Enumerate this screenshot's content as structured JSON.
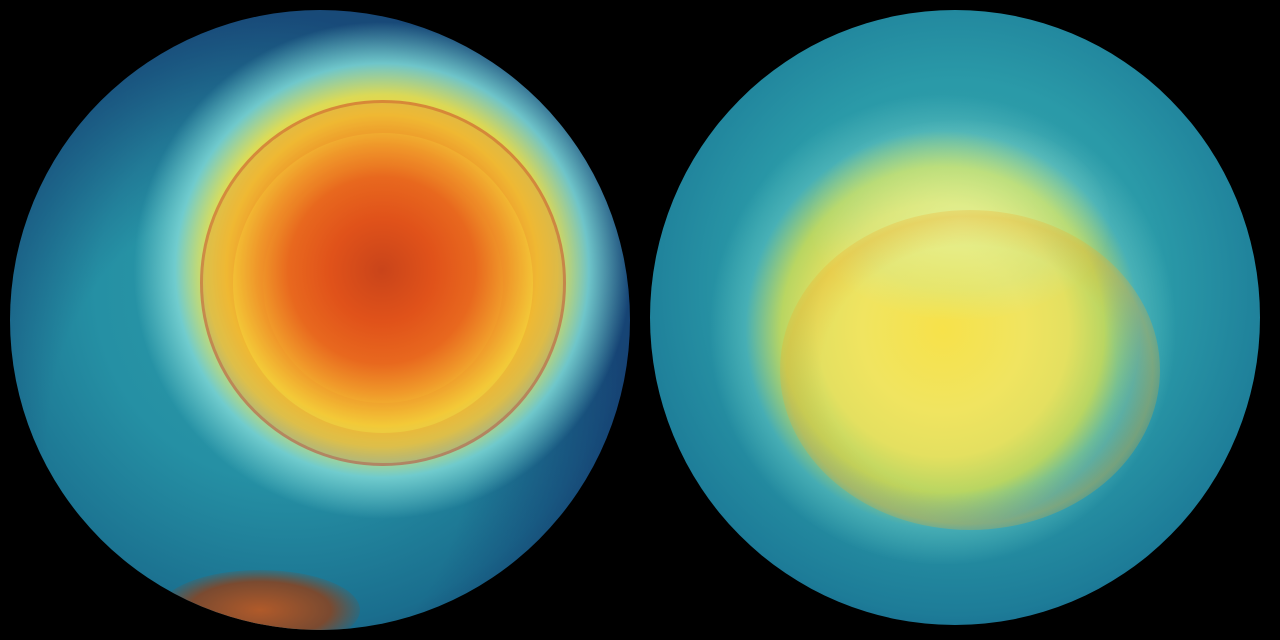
{
  "scene": {
    "left_globe": {
      "colormap": [
        "#123a66",
        "#2a9aa8",
        "#f4d43a",
        "#e8681e",
        "#c9441a"
      ]
    },
    "right_globe": {
      "colormap": [
        "#145080",
        "#3aa6b0",
        "#e4e060",
        "#f7e24a"
      ]
    },
    "background": "#000000"
  }
}
